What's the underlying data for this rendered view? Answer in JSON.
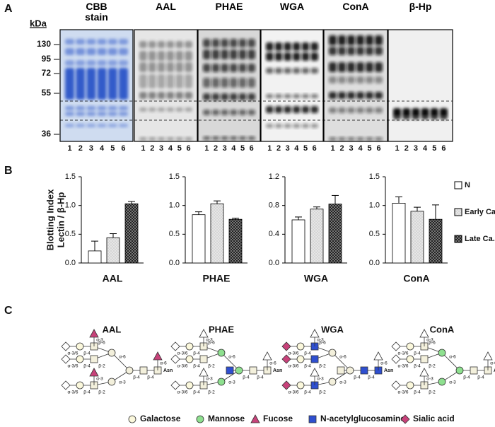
{
  "panel_labels": [
    "A",
    "B",
    "C"
  ],
  "blot": {
    "unit": "kDa",
    "markers": [
      130,
      95,
      72,
      55,
      36
    ],
    "headers": [
      "CBB stain",
      "AAL",
      "PHAE",
      "WGA",
      "ConA",
      "β-Hp"
    ],
    "lanes": [
      1,
      2,
      3,
      4,
      5,
      6
    ]
  },
  "chart_data": [
    {
      "type": "bar",
      "x_label": "AAL",
      "y_label": [
        "Blotting Index",
        "Lectin / β-Hp"
      ],
      "ylim": [
        0,
        1.5
      ],
      "yticks": [
        {
          "value": 0,
          "label": "0.0"
        },
        {
          "value": 0.5,
          "label": "0.5"
        },
        {
          "value": 1,
          "label": "1.0"
        },
        {
          "value": 1.5,
          "label": "1.5"
        }
      ],
      "series": [
        {
          "pattern": "white",
          "values": [
            0.21
          ],
          "errors": [
            0.17
          ]
        },
        {
          "pattern": "dots",
          "values": [
            0.44
          ],
          "errors": [
            0.07
          ]
        },
        {
          "pattern": "dark",
          "values": [
            1.03
          ],
          "errors": [
            0.04
          ]
        }
      ]
    },
    {
      "type": "bar",
      "x_label": "PHAE",
      "ylim": [
        0,
        1.5
      ],
      "yticks": [
        {
          "value": 0,
          "label": "0.0"
        },
        {
          "value": 0.5,
          "label": "0.5"
        },
        {
          "value": 1,
          "label": "1.0"
        },
        {
          "value": 1.5,
          "label": "1.5"
        }
      ],
      "series": [
        {
          "pattern": "white",
          "values": [
            0.84
          ],
          "errors": [
            0.05
          ]
        },
        {
          "pattern": "dots",
          "values": [
            1.03
          ],
          "errors": [
            0.05
          ]
        },
        {
          "pattern": "dark",
          "values": [
            0.76
          ],
          "errors": [
            0.02
          ]
        }
      ]
    },
    {
      "type": "bar",
      "x_label": "WGA",
      "ylim": [
        0,
        1.2
      ],
      "yticks": [
        {
          "value": 0,
          "label": "0.0"
        },
        0.4,
        0.8,
        1.2
      ],
      "series": [
        {
          "pattern": "white",
          "values": [
            0.6
          ],
          "errors": [
            0.04
          ]
        },
        {
          "pattern": "dots",
          "values": [
            0.75
          ],
          "errors": [
            0.03
          ]
        },
        {
          "pattern": "dark",
          "values": [
            0.82
          ],
          "errors": [
            0.12
          ]
        }
      ]
    },
    {
      "type": "bar",
      "x_label": "ConA",
      "ylim": [
        0,
        1.5
      ],
      "yticks": [
        {
          "value": 0,
          "label": "0.0"
        },
        {
          "value": 0.5,
          "label": "0.5"
        },
        {
          "value": 1,
          "label": "1.0"
        },
        {
          "value": 1.5,
          "label": "1.5"
        }
      ],
      "series": [
        {
          "pattern": "white",
          "values": [
            1.04
          ],
          "errors": [
            0.11
          ]
        },
        {
          "pattern": "dots",
          "values": [
            0.9
          ],
          "errors": [
            0.07
          ]
        },
        {
          "pattern": "dark",
          "values": [
            0.76
          ],
          "errors": [
            0.25
          ]
        }
      ]
    }
  ],
  "legend": [
    "N",
    "Early Ca.",
    "Late Ca."
  ],
  "glycans": {
    "linkages": [
      "α-3/6",
      "β-4",
      "β-2",
      "β-6",
      "α-6",
      "α-3",
      "Asn"
    ],
    "items": [
      {
        "title": "AAL",
        "sialic": "#ffffff",
        "glcnac": "#f3f0dc",
        "mannose": "#f3f0dc",
        "fucose": "#c8427a",
        "core_fucose": "#c8427a",
        "bisect": null
      },
      {
        "title": "PHAE",
        "sialic": "#ffffff",
        "glcnac": "#f3f0dc",
        "mannose": "#8ee08f",
        "fucose": "#ffffff",
        "core_fucose": "#ffffff",
        "bisect": "#2f4fd0"
      },
      {
        "title": "WGA",
        "sialic": "#c8427a",
        "glcnac": "#2f4fd0",
        "mannose": "#f3f0dc",
        "fucose": "#ffffff",
        "core_fucose": "#ffffff",
        "bisect": "#f3f0dc"
      },
      {
        "title": "ConA",
        "sialic": "#ffffff",
        "glcnac": "#f3f0dc",
        "mannose": "#8ee08f",
        "fucose": "#ffffff",
        "core_fucose": "#ffffff",
        "bisect": null
      }
    ],
    "legend": [
      "Galactose",
      "Mannose",
      "Fucose",
      "N-acetylglucosamine",
      "Sialic acid"
    ]
  }
}
